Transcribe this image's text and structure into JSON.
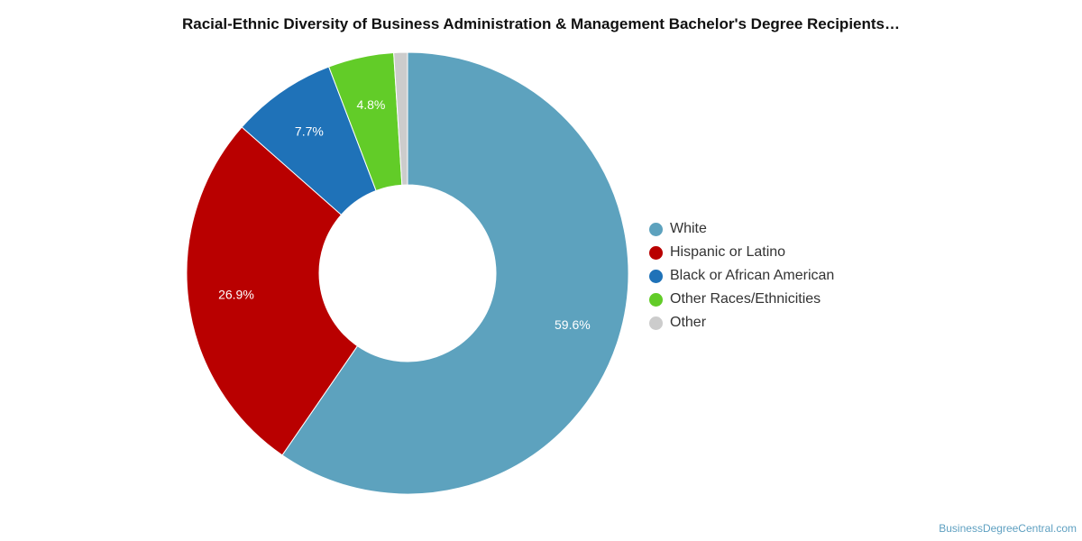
{
  "chart_data": {
    "type": "pie",
    "title": "Racial-Ethnic Diversity of Business Administration & Management Bachelor's Degree Recipients…",
    "categories": [
      "White",
      "Hispanic or Latino",
      "Black or African American",
      "Other Races/Ethnicities",
      "Other"
    ],
    "values": [
      59.6,
      26.9,
      7.7,
      4.8,
      1.0
    ],
    "value_labels": [
      "59.6%",
      "26.9%",
      "7.7%",
      "4.8%",
      ""
    ],
    "colors": [
      "#5da2be",
      "#b90000",
      "#1f72b8",
      "#62cc28",
      "#cccccc"
    ],
    "donut": true,
    "legend_position": "right"
  },
  "credit": "BusinessDegreeCentral.com"
}
